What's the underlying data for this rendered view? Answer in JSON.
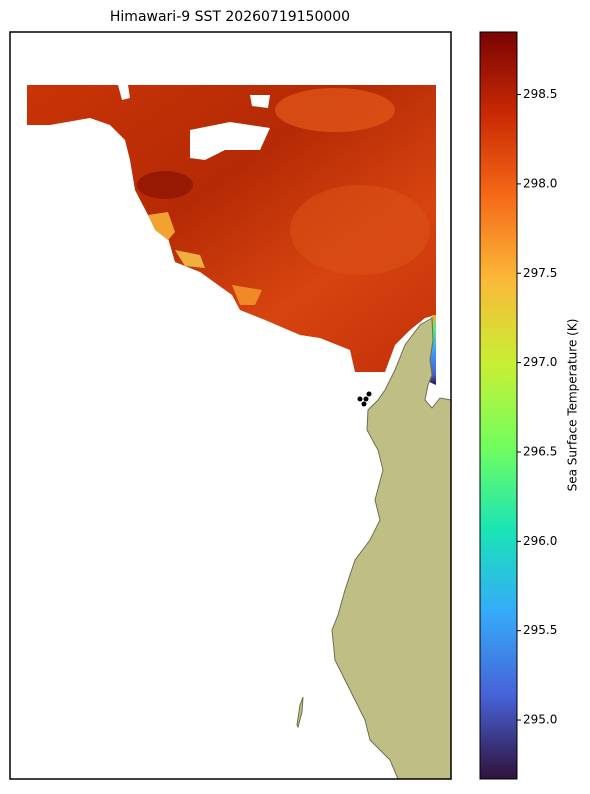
{
  "chart_data": {
    "type": "map",
    "title": "Himawari-9 SST 20260719150000",
    "colorbar_label": "Sea Surface Temperature (K)",
    "colormap": [
      "#30123b",
      "#4662d7",
      "#36aaf9",
      "#1ae4b6",
      "#72fe5e",
      "#c8ef34",
      "#faba39",
      "#f66b19",
      "#ca2a04",
      "#7a0403"
    ],
    "ylim": [
      294.67,
      298.85
    ],
    "yticks": [
      {
        "value": 295,
        "label": "295.0"
      },
      295.5,
      {
        "value": 296,
        "label": "296.0"
      },
      296.5,
      {
        "value": 297,
        "label": "297.0"
      },
      297.5,
      {
        "value": 298,
        "label": "298.0"
      },
      298.5
    ]
  }
}
